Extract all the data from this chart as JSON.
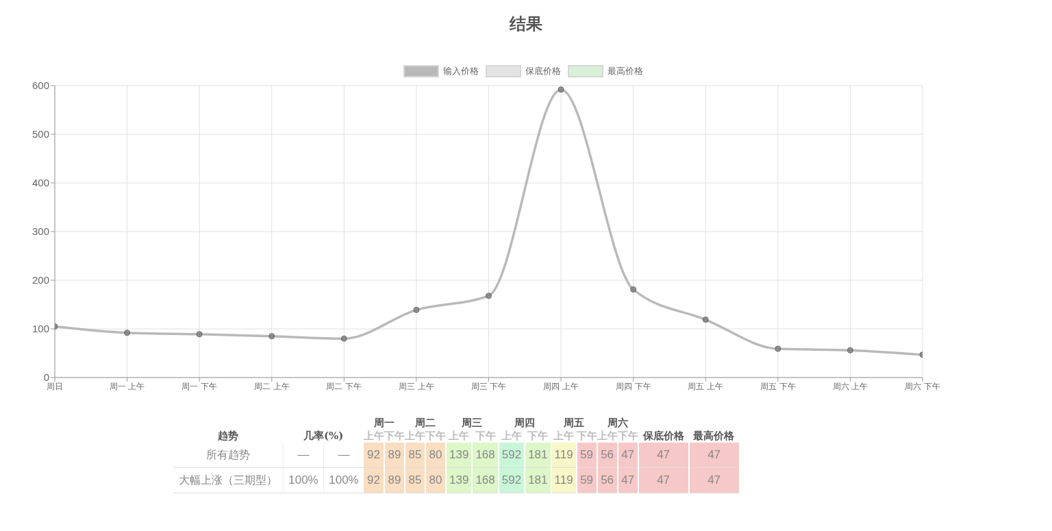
{
  "chart_data": {
    "type": "line",
    "title": "结果",
    "categories": [
      "周日",
      "周一 上午",
      "周一 下午",
      "周二 上午",
      "周二 下午",
      "周三 上午",
      "周三 下午",
      "周四 上午",
      "周四 下午",
      "周五 上午",
      "周五 下午",
      "周六 上午",
      "周六 下午"
    ],
    "series": [
      {
        "name": "输入价格",
        "color": "#b9b9b9",
        "values": [
          105,
          92,
          89,
          85,
          80,
          139,
          168,
          592,
          181,
          119,
          59,
          56,
          47
        ]
      },
      {
        "name": "保底价格",
        "color": "#e4e4e4",
        "values": [
          null,
          null,
          null,
          null,
          null,
          null,
          null,
          null,
          null,
          null,
          null,
          null,
          null
        ]
      },
      {
        "name": "最高价格",
        "color": "#d8f0d8",
        "values": [
          null,
          null,
          null,
          null,
          null,
          null,
          null,
          null,
          null,
          null,
          null,
          null,
          null
        ]
      }
    ],
    "ylim": [
      0,
      600
    ],
    "yticks": [
      0,
      100,
      200,
      300,
      400,
      500,
      600
    ],
    "grid": true,
    "legend": "top",
    "marker": "circle",
    "line_style": "solid",
    "annotations": [
      "趋势",
      "几率(%)",
      "周一",
      "周二",
      "周三",
      "周四",
      "周五",
      "周六",
      "上午",
      "下午",
      "保底价格",
      "最高价格",
      "所有趋势",
      "—",
      "—",
      "92",
      "89",
      "85",
      "80",
      "139",
      "168",
      "592",
      "181",
      "119",
      "59",
      "56",
      "47",
      "47",
      "47",
      "大幅上涨（三期型）",
      "100%",
      "100%",
      "92",
      "89",
      "85",
      "80",
      "139",
      "168",
      "592",
      "181",
      "119",
      "59",
      "56",
      "47",
      "47",
      "47"
    ]
  }
}
